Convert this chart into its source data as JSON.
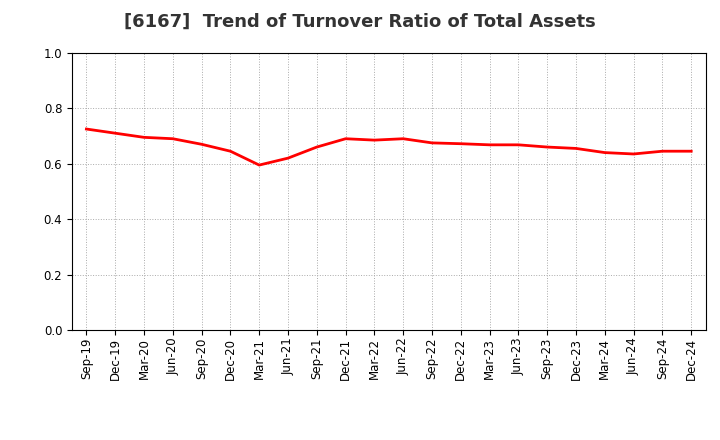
{
  "title": "[6167]  Trend of Turnover Ratio of Total Assets",
  "labels": [
    "Sep-19",
    "Dec-19",
    "Mar-20",
    "Jun-20",
    "Sep-20",
    "Dec-20",
    "Mar-21",
    "Jun-21",
    "Sep-21",
    "Dec-21",
    "Mar-22",
    "Jun-22",
    "Sep-22",
    "Dec-22",
    "Mar-23",
    "Jun-23",
    "Sep-23",
    "Dec-23",
    "Mar-24",
    "Jun-24",
    "Sep-24",
    "Dec-24"
  ],
  "values": [
    0.725,
    0.71,
    0.695,
    0.69,
    0.67,
    0.645,
    0.595,
    0.62,
    0.66,
    0.69,
    0.685,
    0.69,
    0.675,
    0.672,
    0.668,
    0.668,
    0.66,
    0.655,
    0.64,
    0.635,
    0.645,
    0.645
  ],
  "line_color": "#ff0000",
  "line_width": 2.0,
  "ylim": [
    0.0,
    1.0
  ],
  "yticks": [
    0.0,
    0.2,
    0.4,
    0.6,
    0.8,
    1.0
  ],
  "grid_color": "#aaaaaa",
  "grid_linestyle": ":",
  "bg_color": "#ffffff",
  "plot_bg_color": "#ffffff",
  "title_fontsize": 13,
  "tick_fontsize": 8.5,
  "title_color": "#333333"
}
